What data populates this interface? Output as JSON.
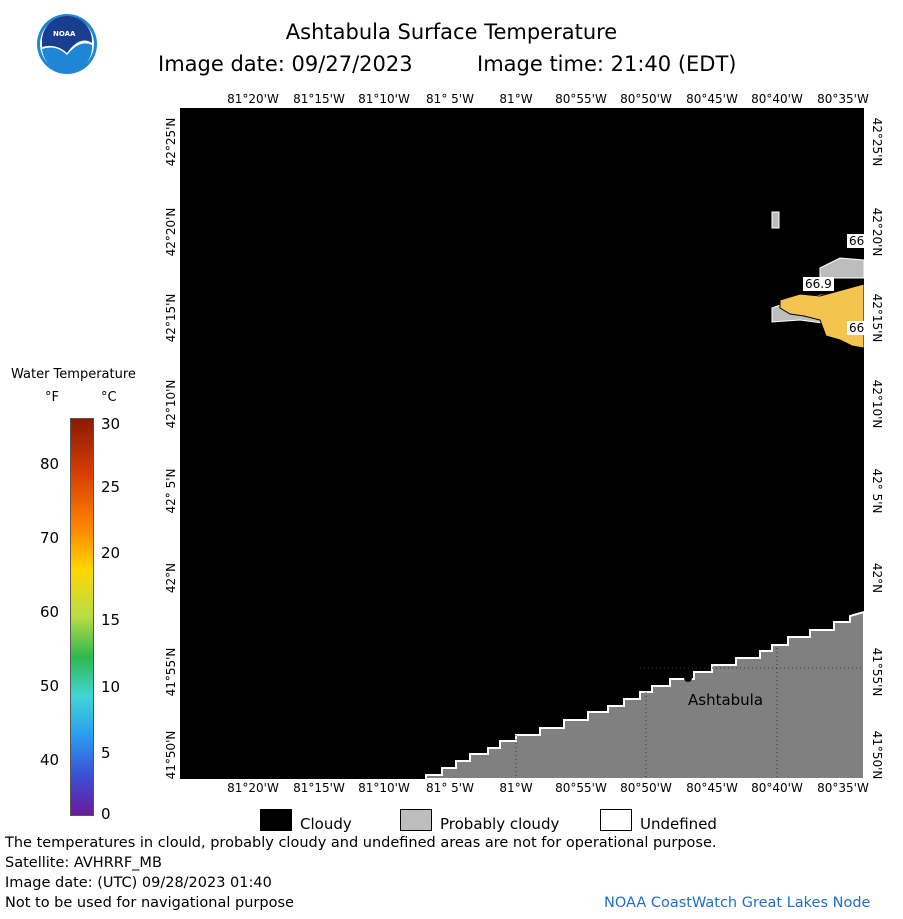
{
  "header": {
    "title": "Ashtabula Surface Temperature",
    "date_label": "Image date: 09/27/2023",
    "time_label": "Image time: 21:40 (EDT)",
    "logo_text": "NOAA"
  },
  "map": {
    "lon_labels": [
      "81°20'W",
      "81°15'W",
      "81°10'W",
      "81° 5'W",
      "81°W",
      "80°55'W",
      "80°50'W",
      "80°45'W",
      "80°40'W",
      "80°35'W"
    ],
    "lat_labels": [
      "42°25'N",
      "42°20'N",
      "42°15'N",
      "42°10'N",
      "42° 5'N",
      "42°N",
      "41°55'N",
      "41°50'N"
    ],
    "city": "Ashtabula",
    "temp_labels": [
      "66",
      "66.9",
      "66"
    ],
    "colors": {
      "cloudy": "#000000",
      "probably_cloudy": "#bdbdbd",
      "land": "#808080",
      "warm": "#f4c451"
    }
  },
  "legend": {
    "title": "Water Temperature",
    "unit_f": "°F",
    "unit_c": "°C",
    "f_ticks": [
      "80",
      "70",
      "60",
      "50",
      "40"
    ],
    "c_ticks": [
      "30",
      "25",
      "20",
      "15",
      "10",
      "5",
      "0"
    ]
  },
  "key": {
    "cloudy": "Cloudy",
    "probably_cloudy": "Probably cloudy",
    "undefined": "Undefined"
  },
  "footer": {
    "line1": "The temperatures in clould, probably cloudy and undefined areas are not for operational purpose.",
    "line2": "Satellite: AVHRRF_MB",
    "line3": "Image date: (UTC) 09/28/2023  01:40",
    "line4": "Not to be used for navigational purpose",
    "credit": "NOAA CoastWatch Great Lakes Node"
  }
}
